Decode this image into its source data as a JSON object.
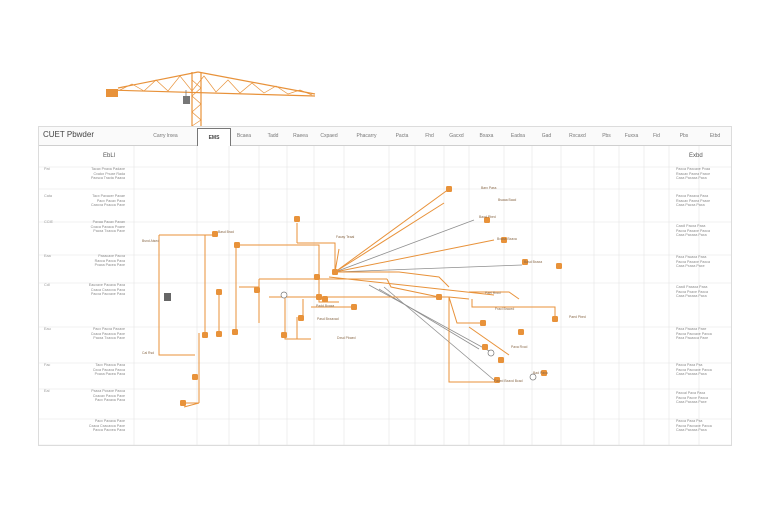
{
  "board": {
    "title": "CUET Pbwder",
    "columns": [
      "Carry lrxea",
      "EMS",
      "Bcaea",
      "Tadd",
      "Raeea",
      "Cxpaed",
      "Phacarry",
      "Pacta",
      "Fhd",
      "Gacxd",
      "Bxaxa",
      "Eadxa",
      "Gad",
      "Rxcaxd",
      "Pbs",
      "Fuxxa",
      "Fid",
      "Pbs",
      "Etbd"
    ],
    "active_tab": "EMS",
    "left_heading": "EbLl",
    "right_heading": "Exbd",
    "left_rows": [
      {
        "head": "Pat",
        "lines": [
          "Tacax Pnaxa Padaxe",
          "Cxalcx Pnuxe Rada",
          "Paxsca  Tracta Paaxa"
        ]
      },
      {
        "head": "Cata",
        "lines": [
          "Tacx Paxacer Paxae",
          "Pacx Pacax Paxa",
          "Caxcxa  Pxacca Paxe"
        ]
      },
      {
        "head": "CCIE",
        "lines": [
          "Paxaa Pacax Paxan",
          "Cxaca Paxaca Pxaee",
          "Pacxa Txaxca Paxe"
        ]
      },
      {
        "head": "Eaa",
        "lines": [
          "Paxacaxe Pacxa",
          "Raxca Paxca Paxa",
          "Pxaxa Pacea Paxe"
        ]
      },
      {
        "head": "Cdl",
        "lines": [
          "Eauxaxe Pacaxa Paxa",
          "Cxaca Cxaxcxa Paxa",
          "Pacxa  Pacxaxe Paxa"
        ]
      },
      {
        "head": "Eau",
        "lines": [
          "Pacx Pacxa Paxaxe",
          "Cxaca Pacaxca Paxe",
          "Pacxa Txaxca Paxe"
        ]
      },
      {
        "head": "Fac",
        "lines": [
          "Tacx Pbaxca Paxa",
          "Cxca Pacaxa Paxca",
          "Pxaxa Pacea Paxa"
        ]
      },
      {
        "head": "Eal",
        "lines": [
          "Pxaxa Pcxaxe Paxca",
          "Cxacax Paxca Paxe",
          "Pacx Paxaxa Paxa"
        ]
      },
      {
        "head": "",
        "lines": [
          "Pacx Paxaxa Paxe",
          "Cxaca Cxacaxca Paxe",
          "Paxca Pacxea Paxa"
        ]
      }
    ],
    "right_rows": [
      [
        "Paxca Paxcaxe Pxaa",
        "Rxacax Paxea Paxce",
        "Caxa Paxaxa Paxa"
      ],
      [
        "Paxca Paxaxa Paxa",
        "Rxacax Paxea Pxaxe",
        "Caxa Pacxa Paxa"
      ],
      [
        "Caxdl Pacxa Paxa",
        "Pacxa Paxaxe Paxca",
        "Caxa Paxaxa Paxa"
      ],
      [
        "Paxa Pacaxa Paxa",
        "Pacxa Paxaxe Paxca",
        "Caxa Pxaxa Paxe"
      ],
      [
        "Caxdl Paxaxa Paxa",
        "Pacxa Pxaxe Paxca",
        "Caxa Paxaxa Paxa"
      ],
      [
        "Paxa Pacaxa Paxe",
        "Pacxa Pacxaxe Paxca",
        "Paxa Pacaxca Paxe"
      ],
      [
        "Paxca Paxa Pxa",
        "Pacxa Pacxaxe Paxca",
        "Caxa Paxaxa Paxa"
      ],
      [
        "Paxcal Paxa Paxa",
        "Pacxa Pacxe Paxca",
        "Caxa Paxaxa Paxe"
      ],
      [
        "Paxca Paxa Pxa",
        "Pacxa Pacxaxe Paxca",
        "Caxa Paxaxa Paxa"
      ]
    ],
    "node_labels": [
      "Bsnd Atsed",
      "Basd Brad",
      "Facay Teaal",
      "Barx Pass",
      "Bsaaa Bacd",
      "Baod Pbed",
      "Bxaxa Bxaxa",
      "Basd Bxaxa",
      "Pael Rxcd",
      "Fracl Braced",
      "Paed Pbed",
      "Paxa Rxcd",
      "Faced Bxaxd Bcad",
      "Bad Paxa",
      "Padd Bxaxa",
      "Pasd Bxxaxad",
      "Dxsd Pbaed",
      "Cal Rsd"
    ],
    "colors": {
      "accent": "#e8923a",
      "grid": "#e2e2e2",
      "line_gray": "#8f8f8f"
    }
  }
}
